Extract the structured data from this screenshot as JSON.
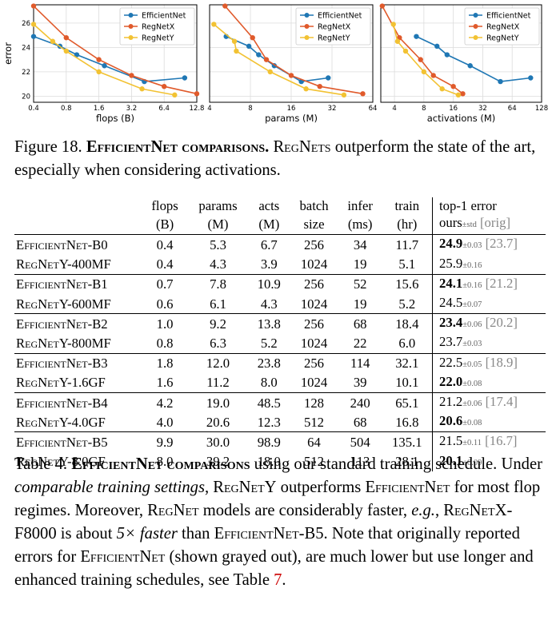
{
  "figure": {
    "charts": [
      {
        "type": "line",
        "xlabel": "flops (B)",
        "ylabel": "error",
        "x_scale": "log2",
        "xticks": [
          "0.4",
          "0.8",
          "1.6",
          "3.2",
          "6.4",
          "12.8"
        ],
        "xtick_values": [
          0.4,
          0.8,
          1.6,
          3.2,
          6.4,
          12.8
        ],
        "yticks": [
          "20",
          "22",
          "24",
          "26"
        ],
        "ytick_values": [
          20,
          22,
          24,
          26
        ],
        "xlim": [
          0.4,
          12.8
        ],
        "ylim": [
          19.5,
          27.5
        ],
        "legend": "top-right",
        "series": [
          {
            "name": "EfficientNet",
            "color": "#1f77b4",
            "x": [
              0.4,
              0.7,
              1.0,
              1.8,
              4.2,
              9.9
            ],
            "y": [
              24.9,
              24.1,
              23.4,
              22.5,
              21.2,
              21.5
            ]
          },
          {
            "name": "RegNetX",
            "color": "#e05a2b",
            "x": [
              0.4,
              0.8,
              1.6,
              3.2,
              6.4,
              12.8
            ],
            "y": [
              27.4,
              24.8,
              23.0,
              21.7,
              20.8,
              20.2
            ]
          },
          {
            "name": "RegNetY",
            "color": "#f2c233",
            "x": [
              0.4,
              0.6,
              0.8,
              1.6,
              4.0,
              8.0
            ],
            "y": [
              25.9,
              24.5,
              23.7,
              22.0,
              20.6,
              20.1
            ]
          }
        ]
      },
      {
        "type": "line",
        "xlabel": "params (M)",
        "ylabel": "",
        "x_scale": "log2",
        "xticks": [
          "4",
          "8",
          "16",
          "32",
          "64"
        ],
        "xtick_values": [
          4,
          8,
          16,
          32,
          64
        ],
        "yticks": [],
        "xlim": [
          4,
          64
        ],
        "ylim": [
          19.5,
          27.5
        ],
        "legend": "top-right",
        "series": [
          {
            "name": "EfficientNet",
            "color": "#1f77b4",
            "x": [
              5.3,
              7.8,
              9.2,
              12.0,
              19.0,
              30.0
            ],
            "y": [
              24.9,
              24.1,
              23.4,
              22.5,
              21.2,
              21.5
            ]
          },
          {
            "name": "RegNetX",
            "color": "#e05a2b",
            "x": [
              5.2,
              8.3,
              10.5,
              16.0,
              26.0,
              54.0
            ],
            "y": [
              27.4,
              24.8,
              23.0,
              21.7,
              20.8,
              20.2
            ]
          },
          {
            "name": "RegNetY",
            "color": "#f2c233",
            "x": [
              4.3,
              6.1,
              6.3,
              11.2,
              20.6,
              39.2
            ],
            "y": [
              25.9,
              24.5,
              23.7,
              22.0,
              20.6,
              20.1
            ]
          }
        ]
      },
      {
        "type": "line",
        "xlabel": "activations (M)",
        "ylabel": "",
        "x_scale": "log2",
        "xticks": [
          "4",
          "8",
          "16",
          "32",
          "64",
          "128"
        ],
        "xtick_values": [
          4,
          8,
          16,
          32,
          64,
          128
        ],
        "yticks": [],
        "xlim": [
          2.9,
          128
        ],
        "ylim": [
          19.5,
          27.5
        ],
        "legend": "top-right",
        "series": [
          {
            "name": "EfficientNet",
            "color": "#1f77b4",
            "x": [
              6.7,
              10.9,
              13.8,
              23.8,
              48.5,
              98.9
            ],
            "y": [
              24.9,
              24.1,
              23.4,
              22.5,
              21.2,
              21.5
            ]
          },
          {
            "name": "RegNetX",
            "color": "#e05a2b",
            "x": [
              3.0,
              4.5,
              7.4,
              10.0,
              16.0,
              20.0
            ],
            "y": [
              27.4,
              24.8,
              23.0,
              21.7,
              20.8,
              20.2
            ]
          },
          {
            "name": "RegNetY",
            "color": "#f2c233",
            "x": [
              3.9,
              4.3,
              5.2,
              8.0,
              12.3,
              18.0
            ],
            "y": [
              25.9,
              24.5,
              23.7,
              22.0,
              20.6,
              20.1
            ]
          }
        ]
      }
    ]
  },
  "fig_caption": {
    "label": "Figure 18.",
    "bold": "EfficientNet comparisons.",
    "rest_sc": "RegNets",
    "rest": " outperform the state of the art, especially when considering activations."
  },
  "table": {
    "headers": {
      "flops": [
        "flops",
        "(B)"
      ],
      "params": [
        "params",
        "(M)"
      ],
      "acts": [
        "acts",
        "(M)"
      ],
      "batch": [
        "batch",
        "size"
      ],
      "infer": [
        "infer",
        "(ms)"
      ],
      "train": [
        "train",
        "(hr)"
      ],
      "error": [
        "top-1 error",
        "ours",
        "±std",
        "[orig]"
      ]
    },
    "rows": [
      {
        "model": "EfficientNet-B0",
        "flops": "0.4",
        "params": "5.3",
        "acts": "6.7",
        "acts_bold": false,
        "batch": "256",
        "infer": "34",
        "train": "11.7",
        "err": "24.9",
        "err_bold": true,
        "std": "±0.03",
        "orig": "[23.7]"
      },
      {
        "model": "RegNetY-400MF",
        "flops": "0.4",
        "params": "4.3",
        "acts": "3.9",
        "acts_bold": true,
        "batch": "1024",
        "infer": "19",
        "train": "5.1",
        "err": "25.9",
        "err_bold": false,
        "std": "±0.16",
        "orig": ""
      },
      {
        "model": "EfficientNet-B1",
        "flops": "0.7",
        "params": "7.8",
        "acts": "10.9",
        "acts_bold": false,
        "batch": "256",
        "infer": "52",
        "train": "15.6",
        "err": "24.1",
        "err_bold": true,
        "std": "±0.16",
        "orig": "[21.2]"
      },
      {
        "model": "RegNetY-600MF",
        "flops": "0.6",
        "params": "6.1",
        "acts": "4.3",
        "acts_bold": true,
        "batch": "1024",
        "infer": "19",
        "train": "5.2",
        "err": "24.5",
        "err_bold": false,
        "std": "±0.07",
        "orig": ""
      },
      {
        "model": "EfficientNet-B2",
        "flops": "1.0",
        "params": "9.2",
        "acts": "13.8",
        "acts_bold": false,
        "batch": "256",
        "infer": "68",
        "train": "18.4",
        "err": "23.4",
        "err_bold": true,
        "std": "±0.06",
        "orig": "[20.2]"
      },
      {
        "model": "RegNetY-800MF",
        "flops": "0.8",
        "params": "6.3",
        "acts": "5.2",
        "acts_bold": true,
        "batch": "1024",
        "infer": "22",
        "train": "6.0",
        "err": "23.7",
        "err_bold": false,
        "std": "±0.03",
        "orig": ""
      },
      {
        "model": "EfficientNet-B3",
        "flops": "1.8",
        "params": "12.0",
        "acts": "23.8",
        "acts_bold": false,
        "batch": "256",
        "infer": "114",
        "train": "32.1",
        "err": "22.5",
        "err_bold": false,
        "std": "±0.05",
        "orig": "[18.9]"
      },
      {
        "model": "RegNetY-1.6GF",
        "flops": "1.6",
        "params": "11.2",
        "acts": "8.0",
        "acts_bold": true,
        "batch": "1024",
        "infer": "39",
        "train": "10.1",
        "err": "22.0",
        "err_bold": true,
        "std": "±0.08",
        "orig": ""
      },
      {
        "model": "EfficientNet-B4",
        "flops": "4.2",
        "params": "19.0",
        "acts": "48.5",
        "acts_bold": false,
        "batch": "128",
        "infer": "240",
        "train": "65.1",
        "err": "21.2",
        "err_bold": false,
        "std": "±0.06",
        "orig": "[17.4]"
      },
      {
        "model": "RegNetY-4.0GF",
        "flops": "4.0",
        "params": "20.6",
        "acts": "12.3",
        "acts_bold": true,
        "batch": "512",
        "infer": "68",
        "train": "16.8",
        "err": "20.6",
        "err_bold": true,
        "std": "±0.08",
        "orig": ""
      },
      {
        "model": "EfficientNet-B5",
        "flops": "9.9",
        "params": "30.0",
        "acts": "98.9",
        "acts_bold": false,
        "batch": "64",
        "infer": "504",
        "train": "135.1",
        "err": "21.5",
        "err_bold": false,
        "std": "±0.11",
        "orig": "[16.7]"
      },
      {
        "model": "RegNetY-8.0GF",
        "flops": "8.0",
        "params": "39.2",
        "acts": "18.0",
        "acts_bold": true,
        "batch": "512",
        "infer": "113",
        "train": "28.1",
        "err": "20.1",
        "err_bold": true,
        "std": "±0.09",
        "orig": ""
      }
    ]
  },
  "table_caption": {
    "label": "Table 4.",
    "bold": "EfficientNet comparisons",
    "p1": " using our standard training schedule. Under ",
    "em1": "comparable training settings",
    "p2": ", ",
    "sc1": "RegNetY",
    "p3": " outperforms ",
    "sc2": "EfficientNet",
    "p4": " for most flop regimes. Moreover, ",
    "sc3": "RegNet",
    "p5": " models are considerably faster, ",
    "em2": "e.g.",
    "p6": ", ",
    "sc4": "RegNetX-F8000",
    "p7": " is about ",
    "em3": "5× faster",
    "p8": " than ",
    "sc5": "EfficientNet-B5",
    "p9": ". Note that originally reported errors for ",
    "sc6": "EfficientNet",
    "p10": " (shown grayed out), are much lower but use longer and enhanced training schedules, see Table ",
    "ref": "7",
    "p11": "."
  }
}
